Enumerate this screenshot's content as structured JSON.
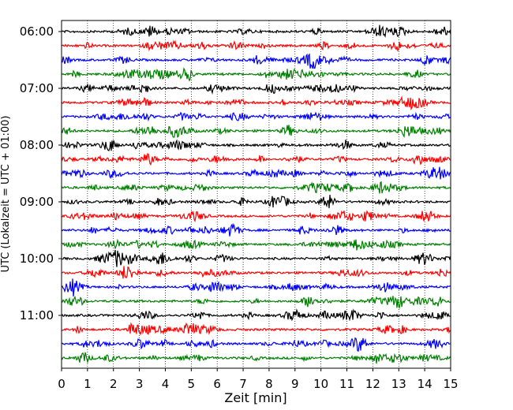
{
  "chart_data": {
    "type": "line",
    "chart_kind": "helicorder seismogram",
    "xlabel": "Zeit  [min]",
    "ylabel": "UTC (Lokalzeit = UTC + 01:00)",
    "xlim": [
      0,
      15
    ],
    "x_ticks": [
      "0",
      "1",
      "2",
      "3",
      "4",
      "5",
      "6",
      "7",
      "8",
      "9",
      "10",
      "11",
      "12",
      "13",
      "14",
      "15"
    ],
    "y_ticks": [
      "06:00",
      "07:00",
      "08:00",
      "09:00",
      "10:00",
      "11:00"
    ],
    "grid": "vertical dotted at each minute",
    "line_colors": [
      "#000000",
      "#ff0000",
      "#0000ff",
      "#008000"
    ],
    "traces": [
      {
        "start": "06:00",
        "color": "#000000"
      },
      {
        "start": "06:15",
        "color": "#ff0000"
      },
      {
        "start": "06:30",
        "color": "#0000ff"
      },
      {
        "start": "06:45",
        "color": "#008000"
      },
      {
        "start": "07:00",
        "color": "#000000"
      },
      {
        "start": "07:15",
        "color": "#ff0000"
      },
      {
        "start": "07:30",
        "color": "#0000ff"
      },
      {
        "start": "07:45",
        "color": "#008000"
      },
      {
        "start": "08:00",
        "color": "#000000"
      },
      {
        "start": "08:15",
        "color": "#ff0000"
      },
      {
        "start": "08:30",
        "color": "#0000ff"
      },
      {
        "start": "08:45",
        "color": "#008000"
      },
      {
        "start": "09:00",
        "color": "#000000"
      },
      {
        "start": "09:15",
        "color": "#ff0000"
      },
      {
        "start": "09:30",
        "color": "#0000ff"
      },
      {
        "start": "09:45",
        "color": "#008000"
      },
      {
        "start": "10:00",
        "color": "#000000"
      },
      {
        "start": "10:15",
        "color": "#ff0000"
      },
      {
        "start": "10:30",
        "color": "#0000ff"
      },
      {
        "start": "10:45",
        "color": "#008000"
      },
      {
        "start": "11:00",
        "color": "#000000"
      },
      {
        "start": "11:15",
        "color": "#ff0000"
      },
      {
        "start": "11:30",
        "color": "#0000ff"
      },
      {
        "start": "11:45",
        "color": "#008000"
      }
    ]
  }
}
